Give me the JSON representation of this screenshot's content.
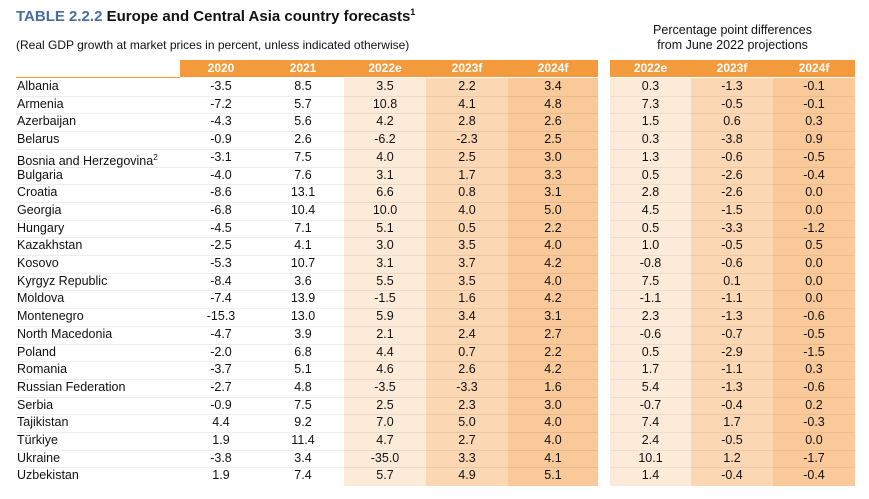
{
  "title": {
    "label": "TABLE 2.2.2",
    "text": "Europe and Central Asia country forecasts",
    "footnote": "1"
  },
  "subtitle": "(Real GDP growth at market prices in percent, unless indicated otherwise)",
  "diff_header": {
    "line1": "Percentage point differences",
    "line2": "from June 2022 projections"
  },
  "columns": [
    "2020",
    "2021",
    "2022e",
    "2023f",
    "2024f"
  ],
  "diff_columns": [
    "2022e",
    "2023f",
    "2024f"
  ],
  "colors": {
    "header_orange": "#f39a3c",
    "shade_light": "#fdebd9",
    "shade_mid": "#fbd7b4",
    "shade_dark": "#f9c999",
    "title_blue": "#4a6e9c"
  },
  "rows": [
    {
      "country": "Albania",
      "sup": "",
      "values": [
        "-3.5",
        "8.5",
        "3.5",
        "2.2",
        "3.4"
      ],
      "diffs": [
        "0.3",
        "-1.3",
        "-0.1"
      ]
    },
    {
      "country": "Armenia",
      "sup": "",
      "values": [
        "-7.2",
        "5.7",
        "10.8",
        "4.1",
        "4.8"
      ],
      "diffs": [
        "7.3",
        "-0.5",
        "-0.1"
      ]
    },
    {
      "country": "Azerbaijan",
      "sup": "",
      "values": [
        "-4.3",
        "5.6",
        "4.2",
        "2.8",
        "2.6"
      ],
      "diffs": [
        "1.5",
        "0.6",
        "0.3"
      ]
    },
    {
      "country": "Belarus",
      "sup": "",
      "values": [
        "-0.9",
        "2.6",
        "-6.2",
        "-2.3",
        "2.5"
      ],
      "diffs": [
        "0.3",
        "-3.8",
        "0.9"
      ]
    },
    {
      "country": "Bosnia and Herzegovina",
      "sup": "2",
      "values": [
        "-3.1",
        "7.5",
        "4.0",
        "2.5",
        "3.0"
      ],
      "diffs": [
        "1.3",
        "-0.6",
        "-0.5"
      ]
    },
    {
      "country": "Bulgaria",
      "sup": "",
      "values": [
        "-4.0",
        "7.6",
        "3.1",
        "1.7",
        "3.3"
      ],
      "diffs": [
        "0.5",
        "-2.6",
        "-0.4"
      ]
    },
    {
      "country": "Croatia",
      "sup": "",
      "values": [
        "-8.6",
        "13.1",
        "6.6",
        "0.8",
        "3.1"
      ],
      "diffs": [
        "2.8",
        "-2.6",
        "0.0"
      ]
    },
    {
      "country": "Georgia",
      "sup": "",
      "values": [
        "-6.8",
        "10.4",
        "10.0",
        "4.0",
        "5.0"
      ],
      "diffs": [
        "4.5",
        "-1.5",
        "0.0"
      ]
    },
    {
      "country": "Hungary",
      "sup": "",
      "values": [
        "-4.5",
        "7.1",
        "5.1",
        "0.5",
        "2.2"
      ],
      "diffs": [
        "0.5",
        "-3.3",
        "-1.2"
      ]
    },
    {
      "country": "Kazakhstan",
      "sup": "",
      "values": [
        "-2.5",
        "4.1",
        "3.0",
        "3.5",
        "4.0"
      ],
      "diffs": [
        "1.0",
        "-0.5",
        "0.5"
      ]
    },
    {
      "country": "Kosovo",
      "sup": "",
      "values": [
        "-5.3",
        "10.7",
        "3.1",
        "3.7",
        "4.2"
      ],
      "diffs": [
        "-0.8",
        "-0.6",
        "0.0"
      ]
    },
    {
      "country": "Kyrgyz Republic",
      "sup": "",
      "values": [
        "-8.4",
        "3.6",
        "5.5",
        "3.5",
        "4.0"
      ],
      "diffs": [
        "7.5",
        "0.1",
        "0.0"
      ]
    },
    {
      "country": "Moldova",
      "sup": "",
      "values": [
        "-7.4",
        "13.9",
        "-1.5",
        "1.6",
        "4.2"
      ],
      "diffs": [
        "-1.1",
        "-1.1",
        "0.0"
      ]
    },
    {
      "country": "Montenegro",
      "sup": "",
      "values": [
        "-15.3",
        "13.0",
        "5.9",
        "3.4",
        "3.1"
      ],
      "diffs": [
        "2.3",
        "-1.3",
        "-0.6"
      ]
    },
    {
      "country": "North Macedonia",
      "sup": "",
      "values": [
        "-4.7",
        "3.9",
        "2.1",
        "2.4",
        "2.7"
      ],
      "diffs": [
        "-0.6",
        "-0.7",
        "-0.5"
      ]
    },
    {
      "country": "Poland",
      "sup": "",
      "values": [
        "-2.0",
        "6.8",
        "4.4",
        "0.7",
        "2.2"
      ],
      "diffs": [
        "0.5",
        "-2.9",
        "-1.5"
      ]
    },
    {
      "country": "Romania",
      "sup": "",
      "values": [
        "-3.7",
        "5.1",
        "4.6",
        "2.6",
        "4.2"
      ],
      "diffs": [
        "1.7",
        "-1.1",
        "0.3"
      ]
    },
    {
      "country": "Russian Federation",
      "sup": "",
      "values": [
        "-2.7",
        "4.8",
        "-3.5",
        "-3.3",
        "1.6"
      ],
      "diffs": [
        "5.4",
        "-1.3",
        "-0.6"
      ]
    },
    {
      "country": "Serbia",
      "sup": "",
      "values": [
        "-0.9",
        "7.5",
        "2.5",
        "2.3",
        "3.0"
      ],
      "diffs": [
        "-0.7",
        "-0.4",
        "0.2"
      ]
    },
    {
      "country": "Tajikistan",
      "sup": "",
      "values": [
        "4.4",
        "9.2",
        "7.0",
        "5.0",
        "4.0"
      ],
      "diffs": [
        "7.4",
        "1.7",
        "-0.3"
      ]
    },
    {
      "country": "Türkiye",
      "sup": "",
      "values": [
        "1.9",
        "11.4",
        "4.7",
        "2.7",
        "4.0"
      ],
      "diffs": [
        "2.4",
        "-0.5",
        "0.0"
      ]
    },
    {
      "country": "Ukraine",
      "sup": "",
      "values": [
        "-3.8",
        "3.4",
        "-35.0",
        "3.3",
        "4.1"
      ],
      "diffs": [
        "10.1",
        "1.2",
        "-1.7"
      ]
    },
    {
      "country": "Uzbekistan",
      "sup": "",
      "values": [
        "1.9",
        "7.4",
        "5.7",
        "4.9",
        "5.1"
      ],
      "diffs": [
        "1.4",
        "-0.4",
        "-0.4"
      ]
    }
  ]
}
